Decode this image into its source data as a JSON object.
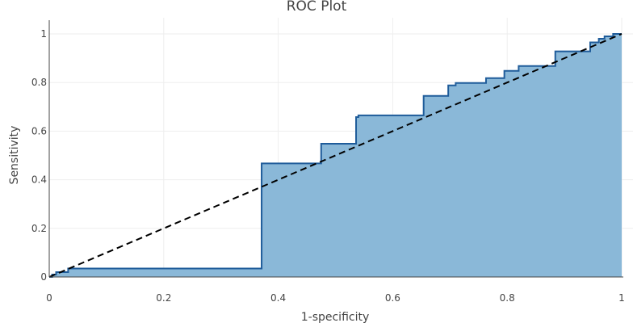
{
  "chart_data": {
    "type": "area",
    "title": "ROC Plot",
    "xlabel": "1-specificity",
    "ylabel": "Sensitivity",
    "xlim": [
      0,
      1
    ],
    "ylim": [
      0,
      1
    ],
    "x_ticks": [
      0,
      0.2,
      0.4,
      0.6,
      0.8,
      1
    ],
    "x_tick_labels": [
      "0",
      "0.2",
      "0.4",
      "0.6",
      "0.8",
      "1"
    ],
    "y_ticks": [
      0,
      0.2,
      0.4,
      0.6,
      0.8,
      1
    ],
    "y_tick_labels": [
      "0",
      "0.2",
      "0.4",
      "0.6",
      "0.8",
      "1"
    ],
    "grid": true,
    "legend": "none",
    "series": [
      {
        "kind": "roc-step-area",
        "fill_color": "#8ab8d8",
        "line_color": "#1f5c9a",
        "points": [
          [
            0,
            0
          ],
          [
            0.005,
            0
          ],
          [
            0.005,
            0.01
          ],
          [
            0.012,
            0.01
          ],
          [
            0.012,
            0.02
          ],
          [
            0.033,
            0.02
          ],
          [
            0.033,
            0.035
          ],
          [
            0.371,
            0.035
          ],
          [
            0.371,
            0.467
          ],
          [
            0.475,
            0.467
          ],
          [
            0.475,
            0.548
          ],
          [
            0.536,
            0.548
          ],
          [
            0.536,
            0.658
          ],
          [
            0.54,
            0.658
          ],
          [
            0.54,
            0.665
          ],
          [
            0.654,
            0.665
          ],
          [
            0.654,
            0.745
          ],
          [
            0.697,
            0.745
          ],
          [
            0.697,
            0.788
          ],
          [
            0.71,
            0.788
          ],
          [
            0.71,
            0.798
          ],
          [
            0.763,
            0.798
          ],
          [
            0.763,
            0.818
          ],
          [
            0.795,
            0.818
          ],
          [
            0.795,
            0.848
          ],
          [
            0.82,
            0.848
          ],
          [
            0.82,
            0.868
          ],
          [
            0.884,
            0.868
          ],
          [
            0.884,
            0.928
          ],
          [
            0.945,
            0.928
          ],
          [
            0.945,
            0.965
          ],
          [
            0.96,
            0.965
          ],
          [
            0.96,
            0.98
          ],
          [
            0.97,
            0.98
          ],
          [
            0.97,
            0.99
          ],
          [
            0.985,
            0.99
          ],
          [
            0.985,
            1.0
          ],
          [
            1.0,
            1.0
          ]
        ]
      },
      {
        "kind": "reference-line",
        "line_color": "#000000",
        "dash": "dashed",
        "points": [
          [
            0,
            0
          ],
          [
            1,
            1
          ]
        ]
      }
    ]
  }
}
